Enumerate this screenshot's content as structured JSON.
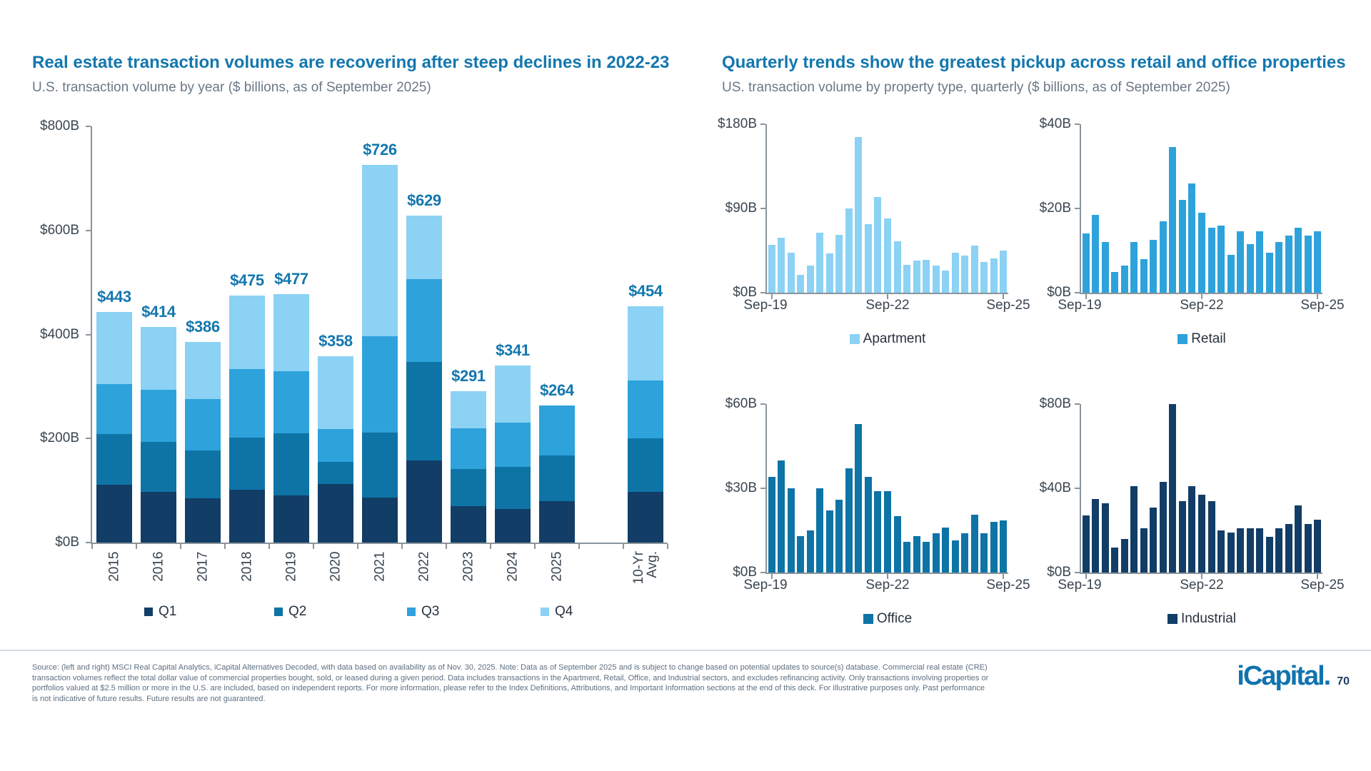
{
  "header": {
    "left_title": "Real estate transaction volumes are recovering after steep declines in 2022-23",
    "left_subtitle": "U.S. transaction volume by year ($ billions, as of September 2025)",
    "right_title": "Quarterly trends show the greatest pickup across retail and office properties",
    "right_subtitle": "US. transaction volume by property type, quarterly ($ billions, as of September 2025)"
  },
  "palette": {
    "q1_navy": "#123D66",
    "q2_blue": "#0E74A6",
    "q3_bright_blue": "#2EA2DB",
    "q4_light_blue": "#8BD2F4",
    "title_blue": "#1377AE"
  },
  "chart_data": [
    {
      "id": "annual",
      "type": "bar",
      "stacked": true,
      "title": "Real estate transaction volumes are recovering after steep declines in 2022-23",
      "subtitle": "U.S. transaction volume by year ($ billions, as of September 2025)",
      "categories": [
        "2015",
        "2016",
        "2017",
        "2018",
        "2019",
        "2020",
        "2021",
        "2022",
        "2023",
        "2024",
        "2025",
        "10-Yr\nAvg."
      ],
      "series": [
        {
          "name": "Q1",
          "color": "#123D66",
          "values": [
            111,
            97,
            85,
            101,
            91,
            112,
            86,
            158,
            70,
            65,
            79,
            98
          ]
        },
        {
          "name": "Q2",
          "color": "#0E74A6",
          "values": [
            97,
            96,
            92,
            101,
            119,
            43,
            126,
            189,
            72,
            81,
            88,
            102
          ]
        },
        {
          "name": "Q3",
          "color": "#2EA2DB",
          "values": [
            96,
            101,
            99,
            132,
            119,
            63,
            184,
            160,
            77,
            85,
            97,
            112
          ]
        },
        {
          "name": "Q4",
          "color": "#8BD2F4",
          "values": [
            139,
            120,
            110,
            141,
            148,
            140,
            330,
            122,
            72,
            110,
            0,
            142
          ]
        }
      ],
      "totals": [
        443,
        414,
        386,
        475,
        477,
        358,
        726,
        629,
        291,
        341,
        264,
        454
      ],
      "totals_labels": [
        "$443",
        "$414",
        "$386",
        "$475",
        "$477",
        "$358",
        "$726",
        "$629",
        "$291",
        "$341",
        "$264",
        "$454"
      ],
      "ylim": [
        0,
        800
      ],
      "y_ticks": [
        "$0B",
        "$200B",
        "$400B",
        "$600B",
        "$800B"
      ],
      "legend_position": "bottom",
      "grid": false
    },
    {
      "id": "apartment",
      "type": "bar",
      "legend_label": "Apartment",
      "color": "#8BD2F4",
      "ylim": [
        0,
        180
      ],
      "y_ticks": [
        "$0B",
        "$90B",
        "$180B"
      ],
      "x_ticks": [
        "Sep-19",
        "Sep-22",
        "Sep-25"
      ],
      "x_range": "Sep-2019 to Sep-2025, quarterly",
      "values": [
        51,
        59,
        43,
        19,
        29,
        64,
        42,
        62,
        90,
        166,
        73,
        102,
        79,
        55,
        30,
        34,
        35,
        29,
        24,
        43,
        40,
        50,
        33,
        37,
        45
      ],
      "grid": false
    },
    {
      "id": "retail",
      "type": "bar",
      "legend_label": "Retail",
      "color": "#2EA2DB",
      "ylim": [
        0,
        40
      ],
      "y_ticks": [
        "$0B",
        "$20B",
        "$40B"
      ],
      "x_ticks": [
        "Sep-19",
        "Sep-22",
        "Sep-25"
      ],
      "x_range": "Sep-2019 to Sep-2025, quarterly",
      "values": [
        14,
        18.5,
        12,
        5,
        6.5,
        12,
        8,
        12.5,
        17,
        34.5,
        22,
        26,
        19,
        15.5,
        16,
        9,
        14.5,
        11.5,
        14.5,
        9.5,
        12,
        13.5,
        15.5,
        13.5,
        14.5
      ],
      "grid": false
    },
    {
      "id": "office",
      "type": "bar",
      "legend_label": "Office",
      "color": "#0E74A6",
      "ylim": [
        0,
        60
      ],
      "y_ticks": [
        "$0B",
        "$30B",
        "$60B"
      ],
      "x_ticks": [
        "Sep-19",
        "Sep-22",
        "Sep-25"
      ],
      "x_range": "Sep-2019 to Sep-2025, quarterly",
      "values": [
        34,
        40,
        30,
        13,
        15,
        30,
        22,
        26,
        37,
        53,
        34,
        29,
        29,
        20,
        11,
        13,
        11,
        14,
        16,
        11.5,
        14,
        20.5,
        14,
        18,
        18.5
      ],
      "grid": false
    },
    {
      "id": "industrial",
      "type": "bar",
      "legend_label": "Industrial",
      "color": "#123D66",
      "ylim": [
        0,
        80
      ],
      "y_ticks": [
        "$0B",
        "$40B",
        "$80B"
      ],
      "x_ticks": [
        "Sep-19",
        "Sep-22",
        "Sep-25"
      ],
      "x_range": "Sep-2019 to Sep-2025, quarterly",
      "values": [
        27,
        35,
        33,
        12,
        16,
        41,
        21,
        31,
        43,
        80,
        34,
        41,
        37,
        34,
        20,
        19,
        21,
        21,
        21,
        17,
        21,
        23,
        32,
        23,
        25
      ],
      "grid": false
    }
  ],
  "footer": {
    "source_text": "Source: (left and right) MSCI Real Capital Analytics, iCapital Alternatives Decoded, with data based on availability as of Nov. 30, 2025. Note: Data as of September 2025 and is subject to change based on potential updates to source(s) database. Commercial real estate (CRE) transaction volumes reflect the total dollar value of commercial properties bought, sold, or leased during a given period. Data includes transactions in the Apartment, Retail, Office, and Industrial sectors, and excludes refinancing activity. Only transactions involving properties or portfolios valued at $2.5 million or more in the U.S. are included, based on independent reports. For more information, please refer to the Index Definitions, Attributions, and Important Information sections at the end of this deck. For illustrative purposes only. Past performance is not indicative of future results. Future results are not guaranteed.",
    "logo_text": "iCapital.",
    "page_number": "70"
  }
}
